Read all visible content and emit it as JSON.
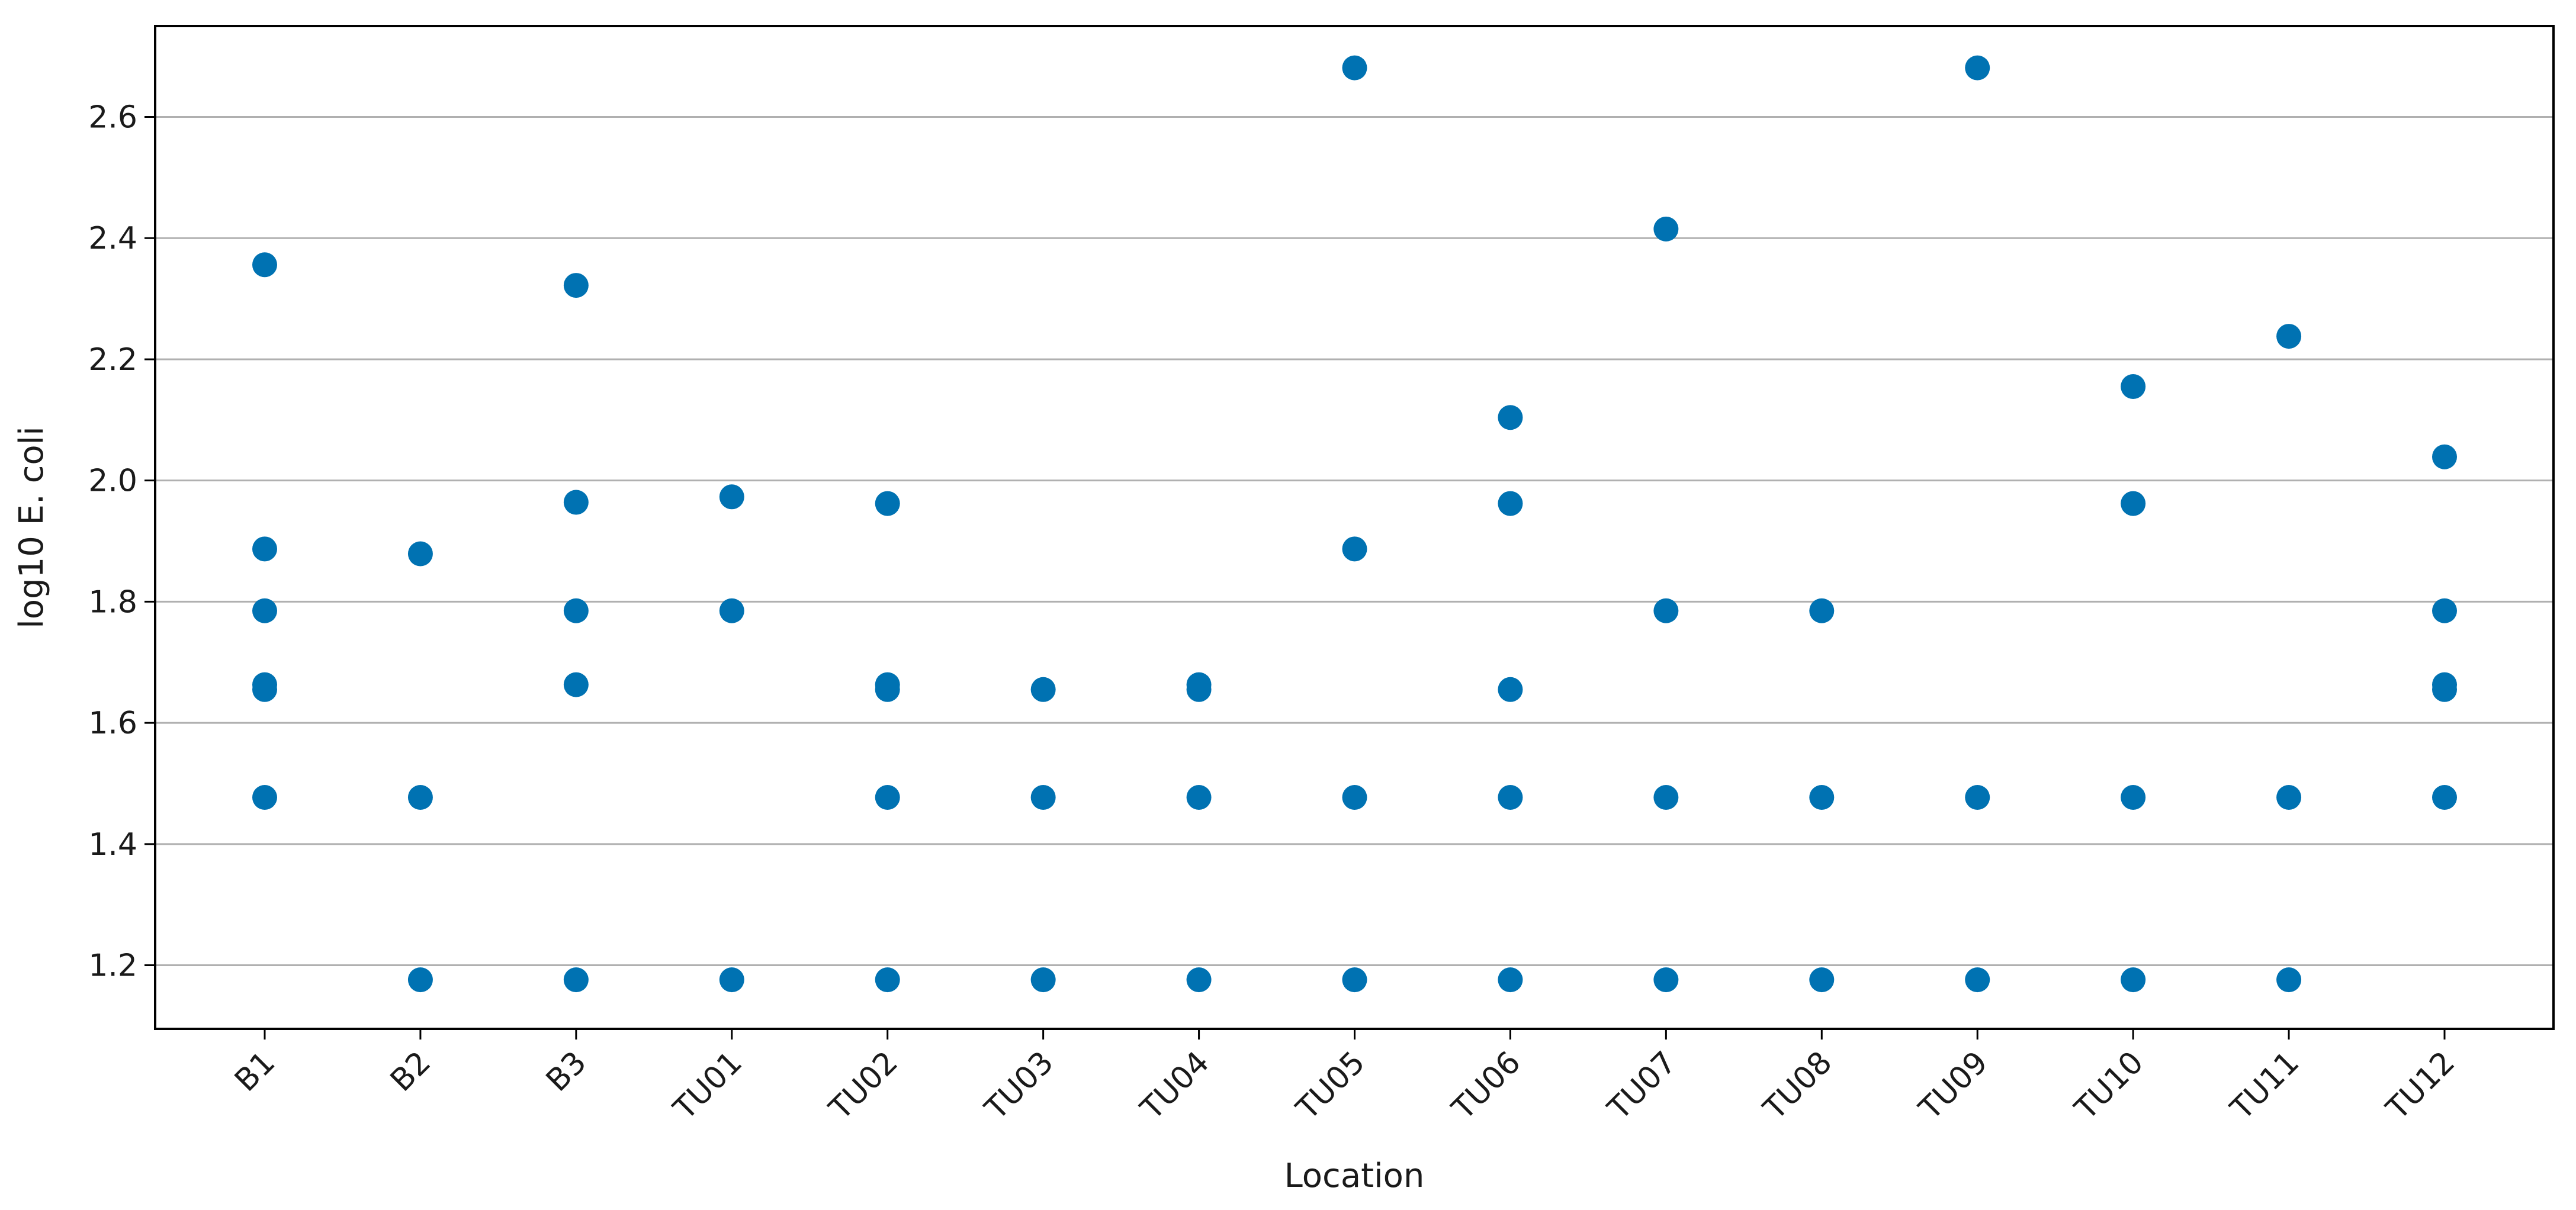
{
  "chart_data": {
    "type": "scatter",
    "xlabel": "Location",
    "ylabel": "log10 E. coli",
    "categories": [
      "B1",
      "B2",
      "B3",
      "TU01",
      "TU02",
      "TU03",
      "TU04",
      "TU05",
      "TU06",
      "TU07",
      "TU08",
      "TU09",
      "TU10",
      "TU11",
      "TU12"
    ],
    "yticks": [
      "1.2",
      "1.4",
      "1.6",
      "1.8",
      "2.0",
      "2.2",
      "2.4",
      "2.6"
    ],
    "ylim": [
      1.095,
      2.75
    ],
    "grid": "horizontal",
    "point_color": "#0072b2",
    "points": {
      "B1": [
        2.356,
        1.887,
        1.785,
        1.663,
        1.655,
        1.477
      ],
      "B2": [
        1.879,
        1.477,
        1.176
      ],
      "B3": [
        2.322,
        1.964,
        1.785,
        1.663,
        1.176
      ],
      "TU01": [
        1.973,
        1.785,
        1.176
      ],
      "TU02": [
        1.962,
        1.663,
        1.655,
        1.477,
        1.176
      ],
      "TU03": [
        1.655,
        1.477,
        1.176
      ],
      "TU04": [
        1.663,
        1.655,
        1.477,
        1.176
      ],
      "TU05": [
        2.681,
        1.887,
        1.477,
        1.176
      ],
      "TU06": [
        2.104,
        1.962,
        1.655,
        1.477,
        1.176
      ],
      "TU07": [
        2.415,
        1.785,
        1.477,
        1.176
      ],
      "TU08": [
        1.785,
        1.477,
        1.176
      ],
      "TU09": [
        2.681,
        1.477,
        1.176
      ],
      "TU10": [
        2.155,
        1.962,
        1.477,
        1.176
      ],
      "TU11": [
        2.238,
        1.477,
        1.176
      ],
      "TU12": [
        2.039,
        1.785,
        1.663,
        1.655,
        1.477
      ]
    }
  }
}
